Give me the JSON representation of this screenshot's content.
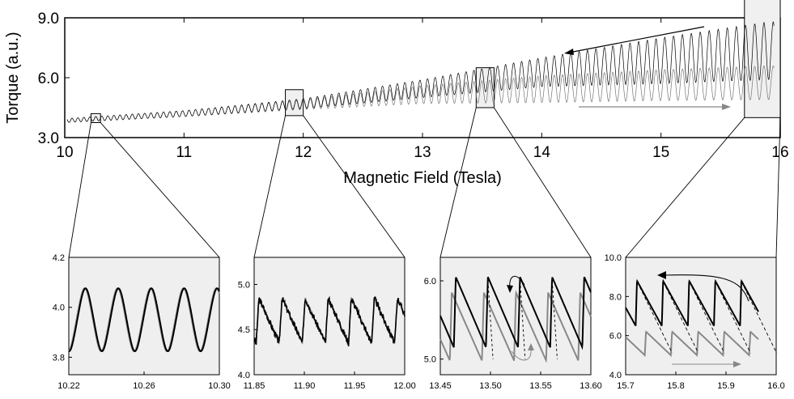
{
  "chart_data": [
    {
      "type": "line",
      "title": "",
      "xlabel": "Magnetic Field (Tesla)",
      "ylabel": "Torque (a.u.)",
      "xlim": [
        10,
        16
      ],
      "ylim": [
        3.0,
        9.0
      ],
      "xticks": [
        "10",
        "11",
        "12",
        "13",
        "14",
        "15",
        "16"
      ],
      "yticks": [
        "3.0",
        "6.0",
        "9.0"
      ],
      "series": [
        {
          "x": [
            10.0,
            11.0,
            12.0,
            13.0,
            14.0,
            15.0,
            15.9
          ],
          "lower": [
            3.75,
            4.05,
            4.45,
            5.0,
            5.55,
            5.7,
            5.9
          ],
          "upper": [
            3.95,
            4.35,
            4.95,
            5.9,
            7.0,
            8.0,
            8.8
          ],
          "color": "#000000"
        },
        {
          "x": [
            10.0,
            11.0,
            12.0,
            13.0,
            14.0,
            15.0,
            15.9
          ],
          "lower": [
            3.75,
            4.05,
            4.4,
            4.7,
            4.75,
            4.85,
            4.9
          ],
          "upper": [
            3.95,
            4.35,
            4.9,
            5.6,
            6.1,
            6.4,
            6.6
          ],
          "color": "#777777"
        }
      ],
      "zoom_boxes": [
        {
          "x": [
            10.22,
            10.3
          ],
          "y": [
            3.75,
            4.2
          ]
        },
        {
          "x": [
            11.85,
            12.0
          ],
          "y": [
            4.1,
            5.4
          ]
        },
        {
          "x": [
            13.45,
            13.6
          ],
          "y": [
            4.5,
            6.5
          ]
        },
        {
          "x": [
            15.7,
            16.0
          ],
          "y": [
            4.0,
            10.0
          ]
        }
      ],
      "grid": false
    },
    {
      "type": "line",
      "xlim": [
        10.22,
        10.3
      ],
      "ylim": [
        3.73,
        4.2
      ],
      "xticks": [
        "10.22",
        "10.26",
        "10.30"
      ],
      "yticks": [
        "3.8",
        "4.0",
        "4.2"
      ],
      "period": 0.0175,
      "mid": 3.95,
      "amp": 0.12,
      "shape": "sine",
      "series": [
        {
          "color": "#000000"
        },
        {
          "color": "#888888"
        }
      ]
    },
    {
      "type": "line",
      "xlim": [
        11.85,
        12.0
      ],
      "ylim": [
        4.0,
        5.3
      ],
      "xticks": [
        "11.85",
        "11.90",
        "11.95",
        "12.00"
      ],
      "yticks": [
        "4.0",
        "4.5",
        "5.0"
      ],
      "period": 0.023,
      "low": 4.35,
      "high": 4.85,
      "shape": "saw",
      "series": [
        {
          "color": "#000000"
        },
        {
          "color": "#888888"
        }
      ]
    },
    {
      "type": "line",
      "xlim": [
        13.45,
        13.6
      ],
      "ylim": [
        4.8,
        6.3
      ],
      "xticks": [
        "13.45",
        "13.50",
        "13.55",
        "13.60"
      ],
      "yticks": [
        "5.0",
        "6.0"
      ],
      "period": 0.032,
      "series": [
        {
          "color": "#000000",
          "low": 5.15,
          "high": 6.05,
          "phase": 0.0175
        },
        {
          "color": "#888888",
          "low": 4.98,
          "high": 5.85,
          "phase": 0.0135
        }
      ]
    },
    {
      "type": "line",
      "xlim": [
        15.7,
        16.0
      ],
      "ylim": [
        4.0,
        10.0
      ],
      "xticks": [
        "15.7",
        "15.8",
        "15.9",
        "16.0"
      ],
      "yticks": [
        "4.0",
        "6.0",
        "8.0",
        "10.0"
      ],
      "period": 0.052,
      "series": [
        {
          "color": "#000000",
          "start": 15.72,
          "low": 6.5,
          "high": 8.8
        },
        {
          "color": "#888888",
          "start": 15.738,
          "low": 5.0,
          "high": 6.2
        }
      ]
    }
  ]
}
